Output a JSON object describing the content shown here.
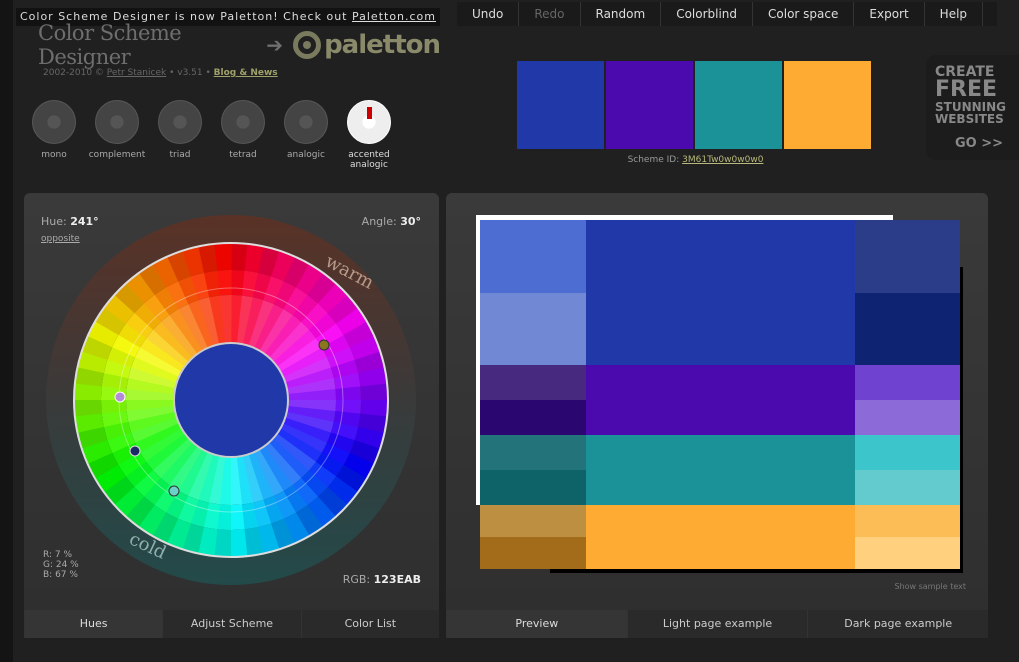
{
  "banner": {
    "text": "Color Scheme Designer is now Paletton! Check out ",
    "link": "Paletton.com"
  },
  "logo": {
    "title": "Color Scheme Designer",
    "paletton": "paletton"
  },
  "credits": {
    "years": "2002-2010 ©",
    "author": "Petr Stanicek",
    "version": "• v3.51 •",
    "blog": "Blog & News"
  },
  "modes": [
    {
      "label": "mono",
      "active": false
    },
    {
      "label": "complement",
      "active": false
    },
    {
      "label": "triad",
      "active": false
    },
    {
      "label": "tetrad",
      "active": false
    },
    {
      "label": "analogic",
      "active": false
    },
    {
      "label": "accented analogic",
      "active": true
    }
  ],
  "menu": [
    "Undo",
    "Redo",
    "Random",
    "Colorblind",
    "Color space",
    "Export",
    "Help"
  ],
  "swatches": [
    "#2038A8",
    "#4A0AAE",
    "#1B9297",
    "#FDAB33"
  ],
  "scheme": {
    "label": "Scheme ID:",
    "id": "3M61Tw0w0w0w0"
  },
  "ad": {
    "l1": "CREATE",
    "l2": "FREE",
    "l3": "STUNNING",
    "l4": "WEBSITES",
    "go": "GO >>"
  },
  "wheel": {
    "hue_label": "Hue:",
    "hue": "241°",
    "opposite": "opposite",
    "angle_label": "Angle:",
    "angle": "30°",
    "warm": "warm",
    "cold": "cold",
    "r": "R:   7 %",
    "g": "G:  24 %",
    "b": "B:  67 %",
    "rgb_label": "RGB:",
    "rgb": "123EAB"
  },
  "left_tabs": [
    "Hues",
    "Adjust Scheme",
    "Color List"
  ],
  "right_tabs": [
    "Preview",
    "Light page example",
    "Dark page example"
  ],
  "show_sample": "Show sample text",
  "preview_colors": {
    "blue": [
      "#4E6DD2",
      "#7188D4",
      "#2138A8",
      "#2B3C88",
      "#0E2371"
    ],
    "violet": [
      "#47297F",
      "#2A0670",
      "#4A0AAE",
      "#6F42D0",
      "#8C6AD8"
    ],
    "teal": [
      "#22737A",
      "#0E6368",
      "#1B9297",
      "#3CC5CB",
      "#63CBCE"
    ],
    "orange": [
      "#BC9040",
      "#A36C1A",
      "#FDAB33",
      "#FCBD56",
      "#FFD07E"
    ]
  }
}
